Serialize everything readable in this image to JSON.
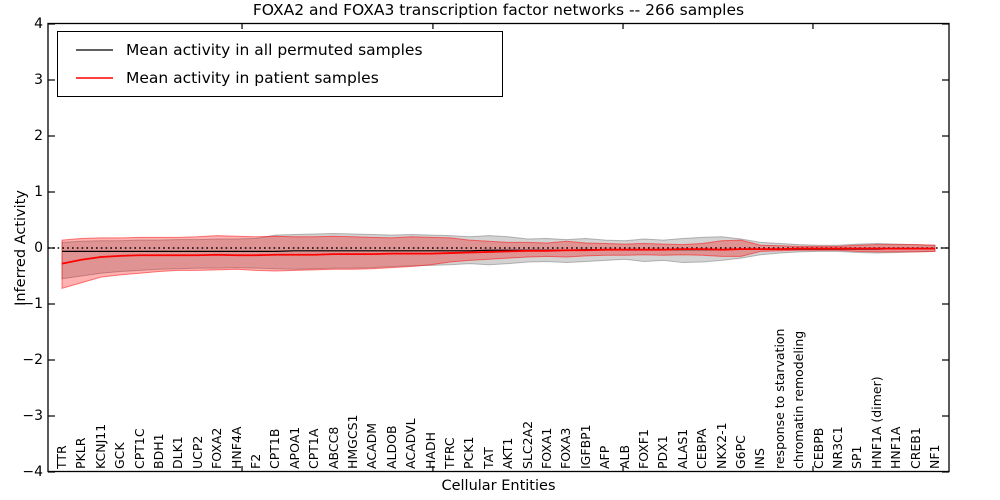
{
  "title": "FOXA2 and FOXA3 transcription factor networks -- 266 samples",
  "legend": {
    "items": [
      {
        "label": "Mean activity in all permuted samples",
        "color": "#000000"
      },
      {
        "label": "Mean activity in patient samples",
        "color": "#ff0000"
      }
    ]
  },
  "chart_data": {
    "type": "line",
    "title": "FOXA2 and FOXA3 transcription factor networks -- 266 samples",
    "xlabel": "Cellular Entities",
    "ylabel": "Inferred Activity",
    "ylim": [
      -4,
      4
    ],
    "yticks": [
      4,
      3,
      2,
      1,
      0,
      -1,
      -2,
      -3,
      -4
    ],
    "x_minor_tick_indices": [
      9.28,
      19.12,
      28.92,
      38.71
    ],
    "grid": false,
    "legend_position": "upper left",
    "zero_line": {
      "value": 0,
      "style": "dotted",
      "color": "#000000"
    },
    "categories": [
      "TTR",
      "PKLR",
      "KCNJ11",
      "GCK",
      "CPT1C",
      "BDH1",
      "DLK1",
      "UCP2",
      "FOXA2",
      "HNF4A",
      "F2",
      "CPT1B",
      "APOA1",
      "CPT1A",
      "ABCC8",
      "HMGCS1",
      "ACADM",
      "ALDOB",
      "ACADVL",
      "HADH",
      "TFRC",
      "PCK1",
      "TAT",
      "AKT1",
      "SLC2A2",
      "FOXA1",
      "FOXA3",
      "IGFBP1",
      "AFP",
      "ALB",
      "FOXF1",
      "PDX1",
      "ALAS1",
      "CEBPA",
      "NKX2-1",
      "G6PC",
      "INS",
      "response to starvation",
      "chromatin remodeling",
      "CEBPB",
      "NR3C1",
      "SP1",
      "HNF1A (dimer)",
      "HNF1A",
      "CREB1",
      "NF1"
    ],
    "series": [
      {
        "name": "Mean activity in all permuted samples",
        "color": "#000000",
        "line_width": 1.2,
        "values": [
          -0.06,
          -0.06,
          -0.06,
          -0.06,
          -0.06,
          -0.06,
          -0.06,
          -0.06,
          -0.06,
          -0.06,
          -0.06,
          -0.06,
          -0.05,
          -0.05,
          -0.05,
          -0.05,
          -0.05,
          -0.05,
          -0.05,
          -0.05,
          -0.05,
          -0.05,
          -0.04,
          -0.04,
          -0.04,
          -0.04,
          -0.04,
          -0.03,
          -0.03,
          -0.03,
          -0.03,
          -0.03,
          -0.03,
          -0.03,
          -0.03,
          -0.02,
          -0.02,
          -0.02,
          -0.02,
          -0.02,
          -0.02,
          -0.02,
          -0.02,
          -0.01,
          -0.01,
          -0.01
        ]
      },
      {
        "name": "Mean activity in patient samples",
        "color": "#ff0000",
        "line_width": 1.8,
        "values": [
          -0.28,
          -0.21,
          -0.16,
          -0.14,
          -0.13,
          -0.13,
          -0.13,
          -0.13,
          -0.12,
          -0.13,
          -0.13,
          -0.12,
          -0.12,
          -0.12,
          -0.11,
          -0.11,
          -0.11,
          -0.1,
          -0.1,
          -0.1,
          -0.09,
          -0.08,
          -0.07,
          -0.06,
          -0.05,
          -0.05,
          -0.04,
          -0.04,
          -0.03,
          -0.03,
          -0.03,
          -0.03,
          -0.02,
          -0.02,
          -0.03,
          -0.02,
          -0.02,
          -0.02,
          -0.01,
          -0.01,
          -0.01,
          -0.01,
          -0.01,
          -0.01,
          -0.01,
          -0.01
        ]
      }
    ],
    "bands": [
      {
        "name": "permuted samples spread",
        "color": "#808080",
        "opacity": 0.35,
        "upper": [
          0.1,
          0.12,
          0.13,
          0.13,
          0.14,
          0.14,
          0.15,
          0.15,
          0.16,
          0.16,
          0.17,
          0.23,
          0.24,
          0.25,
          0.26,
          0.25,
          0.24,
          0.23,
          0.24,
          0.23,
          0.22,
          0.2,
          0.22,
          0.2,
          0.16,
          0.17,
          0.15,
          0.17,
          0.14,
          0.13,
          0.16,
          0.14,
          0.17,
          0.19,
          0.2,
          0.16,
          0.1,
          0.08,
          0.06,
          0.05,
          0.05,
          0.07,
          0.08,
          0.07,
          0.06,
          0.05
        ],
        "lower": [
          -0.55,
          -0.5,
          -0.45,
          -0.42,
          -0.4,
          -0.38,
          -0.37,
          -0.36,
          -0.36,
          -0.35,
          -0.36,
          -0.37,
          -0.38,
          -0.37,
          -0.36,
          -0.36,
          -0.35,
          -0.33,
          -0.32,
          -0.31,
          -0.3,
          -0.28,
          -0.3,
          -0.28,
          -0.25,
          -0.24,
          -0.26,
          -0.24,
          -0.22,
          -0.2,
          -0.24,
          -0.22,
          -0.26,
          -0.25,
          -0.22,
          -0.18,
          -0.12,
          -0.09,
          -0.07,
          -0.06,
          -0.06,
          -0.08,
          -0.09,
          -0.08,
          -0.07,
          -0.06
        ]
      },
      {
        "name": "patient samples spread",
        "color": "#ff0000",
        "opacity": 0.3,
        "upper": [
          0.14,
          0.17,
          0.18,
          0.18,
          0.19,
          0.19,
          0.19,
          0.2,
          0.22,
          0.21,
          0.2,
          0.21,
          0.2,
          0.2,
          0.21,
          0.2,
          0.19,
          0.18,
          0.2,
          0.19,
          0.18,
          0.14,
          0.12,
          0.1,
          0.1,
          0.09,
          0.12,
          0.09,
          0.08,
          0.07,
          0.08,
          0.07,
          0.06,
          0.08,
          0.13,
          0.14,
          0.05,
          0.04,
          0.03,
          0.03,
          0.03,
          0.05,
          0.06,
          0.06,
          0.06,
          0.05
        ],
        "lower": [
          -0.72,
          -0.62,
          -0.52,
          -0.48,
          -0.45,
          -0.42,
          -0.4,
          -0.4,
          -0.39,
          -0.38,
          -0.4,
          -0.41,
          -0.4,
          -0.39,
          -0.38,
          -0.38,
          -0.37,
          -0.35,
          -0.33,
          -0.3,
          -0.25,
          -0.22,
          -0.2,
          -0.18,
          -0.16,
          -0.15,
          -0.16,
          -0.14,
          -0.13,
          -0.13,
          -0.12,
          -0.13,
          -0.12,
          -0.13,
          -0.15,
          -0.15,
          -0.06,
          -0.05,
          -0.04,
          -0.04,
          -0.04,
          -0.06,
          -0.07,
          -0.07,
          -0.07,
          -0.06
        ]
      }
    ]
  }
}
